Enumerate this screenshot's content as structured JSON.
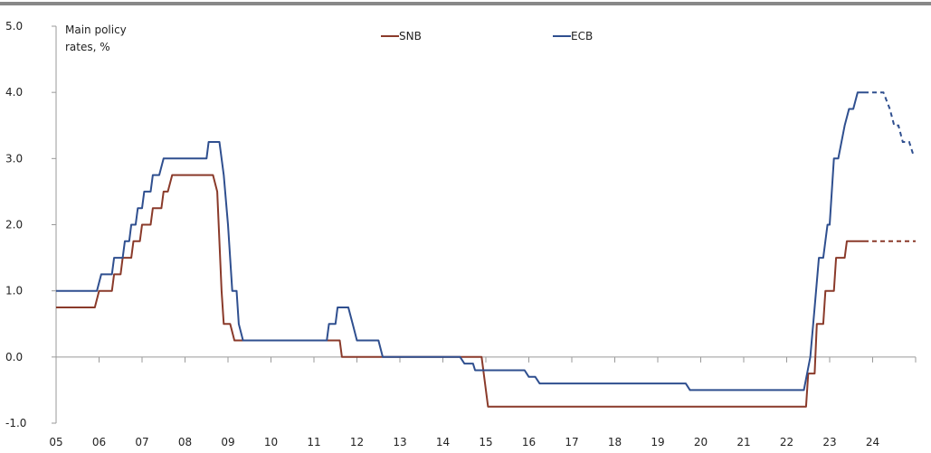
{
  "chart_data": {
    "type": "line",
    "annotation": "Main policy rates, %",
    "annotation_lines": [
      "Main policy",
      "rates, %"
    ],
    "ylim": [
      -1.0,
      5.0
    ],
    "y_ticks": [
      "5.0",
      "4.0",
      "3.0",
      "2.0",
      "1.0",
      "0.0",
      "-1.0"
    ],
    "xlim": [
      2005,
      2025
    ],
    "x_tick_labels": [
      "05",
      "06",
      "07",
      "08",
      "09",
      "10",
      "11",
      "12",
      "13",
      "14",
      "15",
      "16",
      "17",
      "18",
      "19",
      "20",
      "21",
      "22",
      "23",
      "24"
    ],
    "grid": false,
    "legend_position": "top",
    "colors": {
      "SNB": "#8a3a2a",
      "ECB": "#2f4f8f",
      "axis": "#999999",
      "top_rule": "#888888"
    },
    "series": [
      {
        "name": "SNB",
        "color": "#8a3a2a",
        "actual": [
          [
            2005.0,
            0.75
          ],
          [
            2005.9,
            0.75
          ],
          [
            2006.0,
            1.0
          ],
          [
            2006.3,
            1.0
          ],
          [
            2006.35,
            1.25
          ],
          [
            2006.5,
            1.25
          ],
          [
            2006.55,
            1.5
          ],
          [
            2006.75,
            1.5
          ],
          [
            2006.8,
            1.75
          ],
          [
            2006.95,
            1.75
          ],
          [
            2007.0,
            2.0
          ],
          [
            2007.2,
            2.0
          ],
          [
            2007.25,
            2.25
          ],
          [
            2007.45,
            2.25
          ],
          [
            2007.5,
            2.5
          ],
          [
            2007.6,
            2.5
          ],
          [
            2007.7,
            2.75
          ],
          [
            2008.65,
            2.75
          ],
          [
            2008.75,
            2.5
          ],
          [
            2008.85,
            1.0
          ],
          [
            2008.9,
            0.5
          ],
          [
            2009.05,
            0.5
          ],
          [
            2009.15,
            0.25
          ],
          [
            2011.6,
            0.25
          ],
          [
            2011.65,
            0.0
          ],
          [
            2014.9,
            0.0
          ],
          [
            2015.05,
            -0.75
          ],
          [
            2022.45,
            -0.75
          ],
          [
            2022.5,
            -0.25
          ],
          [
            2022.65,
            -0.25
          ],
          [
            2022.7,
            0.5
          ],
          [
            2022.85,
            0.5
          ],
          [
            2022.9,
            1.0
          ],
          [
            2023.1,
            1.0
          ],
          [
            2023.15,
            1.5
          ],
          [
            2023.35,
            1.5
          ],
          [
            2023.4,
            1.75
          ],
          [
            2023.8,
            1.75
          ]
        ],
        "projected": [
          [
            2023.8,
            1.75
          ],
          [
            2025.0,
            1.75
          ]
        ]
      },
      {
        "name": "ECB",
        "color": "#2f4f8f",
        "actual": [
          [
            2005.0,
            1.0
          ],
          [
            2005.95,
            1.0
          ],
          [
            2006.05,
            1.25
          ],
          [
            2006.3,
            1.25
          ],
          [
            2006.35,
            1.5
          ],
          [
            2006.55,
            1.5
          ],
          [
            2006.6,
            1.75
          ],
          [
            2006.7,
            1.75
          ],
          [
            2006.75,
            2.0
          ],
          [
            2006.85,
            2.0
          ],
          [
            2006.9,
            2.25
          ],
          [
            2007.0,
            2.25
          ],
          [
            2007.05,
            2.5
          ],
          [
            2007.2,
            2.5
          ],
          [
            2007.25,
            2.75
          ],
          [
            2007.4,
            2.75
          ],
          [
            2007.5,
            3.0
          ],
          [
            2008.5,
            3.0
          ],
          [
            2008.55,
            3.25
          ],
          [
            2008.8,
            3.25
          ],
          [
            2008.9,
            2.75
          ],
          [
            2009.0,
            2.0
          ],
          [
            2009.1,
            1.0
          ],
          [
            2009.2,
            1.0
          ],
          [
            2009.25,
            0.5
          ],
          [
            2009.35,
            0.25
          ],
          [
            2011.3,
            0.25
          ],
          [
            2011.35,
            0.5
          ],
          [
            2011.5,
            0.5
          ],
          [
            2011.55,
            0.75
          ],
          [
            2011.8,
            0.75
          ],
          [
            2011.9,
            0.5
          ],
          [
            2012.0,
            0.25
          ],
          [
            2012.5,
            0.25
          ],
          [
            2012.6,
            0.0
          ],
          [
            2014.4,
            0.0
          ],
          [
            2014.5,
            -0.1
          ],
          [
            2014.7,
            -0.1
          ],
          [
            2014.75,
            -0.2
          ],
          [
            2015.9,
            -0.2
          ],
          [
            2016.0,
            -0.3
          ],
          [
            2016.15,
            -0.3
          ],
          [
            2016.25,
            -0.4
          ],
          [
            2019.65,
            -0.4
          ],
          [
            2019.75,
            -0.5
          ],
          [
            2022.4,
            -0.5
          ],
          [
            2022.55,
            0.0
          ],
          [
            2022.65,
            0.75
          ],
          [
            2022.75,
            1.5
          ],
          [
            2022.85,
            1.5
          ],
          [
            2022.95,
            2.0
          ],
          [
            2023.0,
            2.0
          ],
          [
            2023.1,
            3.0
          ],
          [
            2023.2,
            3.0
          ],
          [
            2023.35,
            3.5
          ],
          [
            2023.45,
            3.75
          ],
          [
            2023.55,
            3.75
          ],
          [
            2023.65,
            4.0
          ],
          [
            2023.8,
            4.0
          ]
        ],
        "projected": [
          [
            2023.8,
            4.0
          ],
          [
            2024.1,
            4.0
          ],
          [
            2024.25,
            4.0
          ],
          [
            2024.4,
            3.75
          ],
          [
            2024.5,
            3.5
          ],
          [
            2024.6,
            3.5
          ],
          [
            2024.7,
            3.25
          ],
          [
            2024.85,
            3.25
          ],
          [
            2024.95,
            3.05
          ]
        ]
      }
    ]
  }
}
